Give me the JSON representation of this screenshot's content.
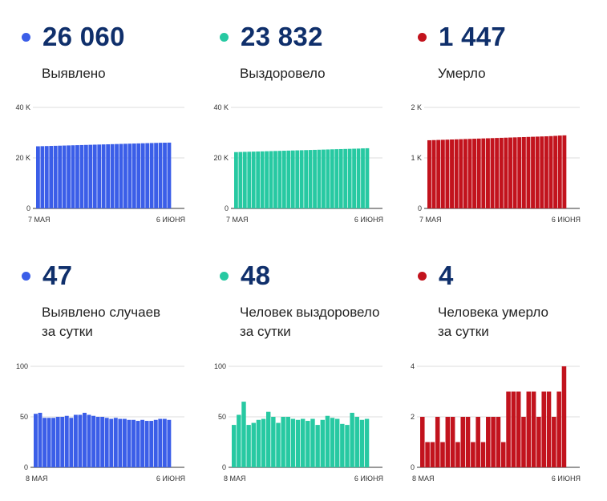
{
  "colors": {
    "blue": "#3b5ee8",
    "green": "#27c9a2",
    "red": "#c2131d",
    "number": "#0f2f6b"
  },
  "panels": [
    {
      "value": "26 060",
      "label_lines": [
        "Выявлено"
      ],
      "color": "#3b5ee8",
      "chart": {
        "type": "bar",
        "yticks": [
          "40 K",
          "20 K",
          "0"
        ],
        "ymax": 40000,
        "xstart": "7 МАЯ",
        "xend": "6 ИЮНЯ"
      }
    },
    {
      "value": "23 832",
      "label_lines": [
        "Выздоровело"
      ],
      "color": "#27c9a2",
      "chart": {
        "type": "bar",
        "yticks": [
          "40 K",
          "20 K",
          "0"
        ],
        "ymax": 40000,
        "xstart": "7 МАЯ",
        "xend": "6 ИЮНЯ"
      }
    },
    {
      "value": "1 447",
      "label_lines": [
        "Умерло"
      ],
      "color": "#c2131d",
      "chart": {
        "type": "bar",
        "yticks": [
          "2 K",
          "1 K",
          "0"
        ],
        "ymax": 2000,
        "xstart": "7 МАЯ",
        "xend": "6 ИЮНЯ"
      }
    },
    {
      "value": "47",
      "label_lines": [
        "Выявлено случаев",
        "за сутки"
      ],
      "color": "#3b5ee8",
      "chart": {
        "type": "bar",
        "yticks": [
          "100",
          "50",
          "0"
        ],
        "ymax": 100,
        "xstart": "8 МАЯ",
        "xend": "6 ИЮНЯ"
      }
    },
    {
      "value": "48",
      "label_lines": [
        "Человек выздоровело",
        "за сутки"
      ],
      "color": "#27c9a2",
      "chart": {
        "type": "bar",
        "yticks": [
          "100",
          "50",
          "0"
        ],
        "ymax": 100,
        "xstart": "8 МАЯ",
        "xend": "6 ИЮНЯ"
      }
    },
    {
      "value": "4",
      "label_lines": [
        "Человека умерло",
        "за сутки"
      ],
      "color": "#c2131d",
      "chart": {
        "type": "bar",
        "yticks": [
          "4",
          "2",
          "0"
        ],
        "ymax": 4,
        "xstart": "8 МАЯ",
        "xend": "6 ИЮНЯ"
      }
    }
  ],
  "chart_data": [
    {
      "type": "bar",
      "series": [
        {
          "values": [
            24600,
            24650,
            24700,
            24750,
            24800,
            24850,
            24900,
            24950,
            25000,
            25050,
            25100,
            25150,
            25200,
            25250,
            25300,
            25350,
            25400,
            25450,
            25500,
            25550,
            25600,
            25650,
            25700,
            25750,
            25800,
            25850,
            25900,
            25950,
            26000,
            26030,
            26060
          ]
        }
      ],
      "xstart": "7 МАЯ",
      "xend": "6 ИЮНЯ",
      "ylim": [
        0,
        40000
      ]
    },
    {
      "type": "bar",
      "series": [
        {
          "values": [
            22300,
            22350,
            22400,
            22450,
            22500,
            22550,
            22600,
            22650,
            22700,
            22750,
            22800,
            22850,
            22900,
            22950,
            23000,
            23050,
            23100,
            23150,
            23200,
            23250,
            23300,
            23350,
            23400,
            23450,
            23500,
            23550,
            23600,
            23650,
            23700,
            23780,
            23832
          ]
        }
      ],
      "xstart": "7 МАЯ",
      "xend": "6 ИЮНЯ",
      "ylim": [
        0,
        40000
      ]
    },
    {
      "type": "bar",
      "series": [
        {
          "values": [
            1350,
            1353,
            1356,
            1359,
            1362,
            1365,
            1368,
            1371,
            1374,
            1377,
            1380,
            1383,
            1386,
            1389,
            1392,
            1395,
            1398,
            1401,
            1404,
            1407,
            1410,
            1413,
            1416,
            1419,
            1422,
            1425,
            1428,
            1432,
            1437,
            1443,
            1447
          ]
        }
      ],
      "xstart": "7 МАЯ",
      "xend": "6 ИЮНЯ",
      "ylim": [
        0,
        2000
      ]
    },
    {
      "type": "bar",
      "series": [
        {
          "values": [
            53,
            54,
            49,
            49,
            49,
            50,
            50,
            51,
            49,
            52,
            52,
            54,
            52,
            51,
            50,
            50,
            49,
            48,
            49,
            48,
            48,
            47,
            47,
            46,
            47,
            46,
            46,
            47,
            48,
            48,
            47
          ]
        }
      ],
      "xstart": "8 МАЯ",
      "xend": "6 ИЮНЯ",
      "ylim": [
        0,
        100
      ]
    },
    {
      "type": "bar",
      "series": [
        {
          "values": [
            42,
            52,
            65,
            42,
            44,
            47,
            48,
            55,
            50,
            44,
            50,
            50,
            48,
            47,
            48,
            46,
            48,
            42,
            47,
            51,
            49,
            48,
            43,
            42,
            54,
            50,
            47,
            48
          ]
        }
      ],
      "xstart": "8 МАЯ",
      "xend": "6 ИЮНЯ",
      "ylim": [
        0,
        100
      ]
    },
    {
      "type": "bar",
      "series": [
        {
          "values": [
            2,
            1,
            1,
            2,
            1,
            2,
            2,
            1,
            2,
            2,
            1,
            2,
            1,
            2,
            2,
            2,
            1,
            3,
            3,
            3,
            2,
            3,
            3,
            2,
            3,
            3,
            2,
            3,
            4
          ]
        }
      ],
      "xstart": "8 МАЯ",
      "xend": "6 ИЮНЯ",
      "ylim": [
        0,
        4
      ]
    }
  ]
}
